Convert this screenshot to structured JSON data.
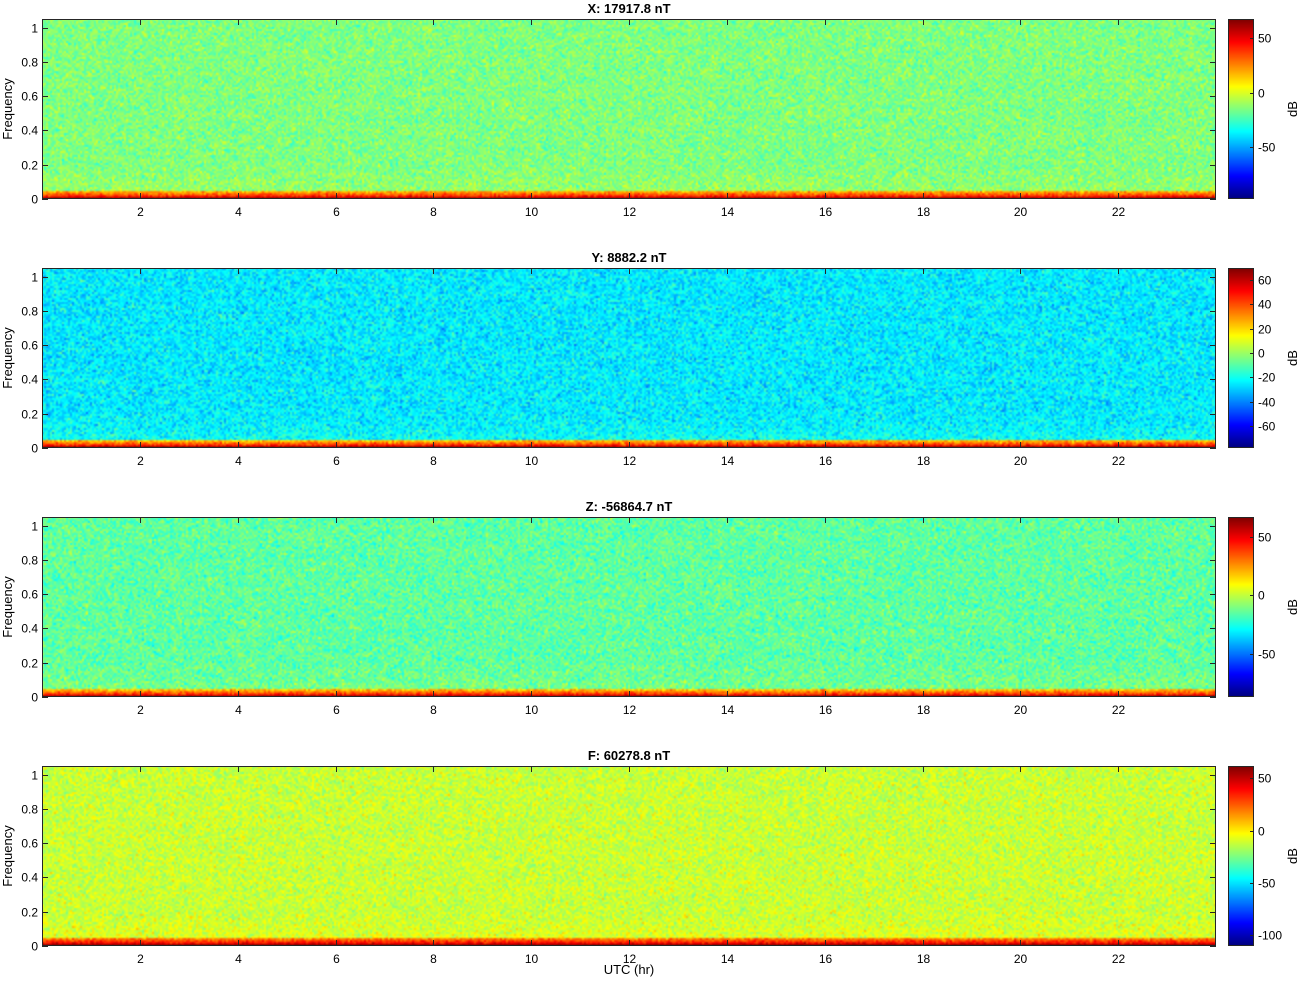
{
  "chart_data": [
    {
      "type": "heatmap",
      "title": "X: 17917.8 nT",
      "ylabel": "Frequency",
      "xlabel": "",
      "xlim": [
        0,
        24
      ],
      "ylim": [
        0,
        1.05
      ],
      "xticks": [
        2,
        4,
        6,
        8,
        10,
        12,
        14,
        16,
        18,
        20,
        22
      ],
      "yticks": [
        0,
        0.2,
        0.4,
        0.6,
        0.8,
        1
      ],
      "colorbar": {
        "label": "dB",
        "range": [
          -97,
          67
        ],
        "ticks": [
          -50,
          0,
          50
        ]
      },
      "background_db": -15,
      "lowfreq_band_db": 45,
      "colormap": "jet"
    },
    {
      "type": "heatmap",
      "title": "Y: 8882.2 nT",
      "ylabel": "Frequency",
      "xlabel": "",
      "xlim": [
        0,
        24
      ],
      "ylim": [
        0,
        1.05
      ],
      "xticks": [
        2,
        4,
        6,
        8,
        10,
        12,
        14,
        16,
        18,
        20,
        22
      ],
      "yticks": [
        0,
        0.2,
        0.4,
        0.6,
        0.8,
        1
      ],
      "colorbar": {
        "label": "dB",
        "range": [
          -78,
          70
        ],
        "ticks": [
          -60,
          -40,
          -20,
          0,
          20,
          40,
          60
        ]
      },
      "background_db": -25,
      "lowfreq_band_db": 50,
      "colormap": "jet"
    },
    {
      "type": "heatmap",
      "title": "Z: -56864.7 nT",
      "ylabel": "Frequency",
      "xlabel": "",
      "xlim": [
        0,
        24
      ],
      "ylim": [
        0,
        1.05
      ],
      "xticks": [
        2,
        4,
        6,
        8,
        10,
        12,
        14,
        16,
        18,
        20,
        22
      ],
      "yticks": [
        0,
        0.2,
        0.4,
        0.6,
        0.8,
        1
      ],
      "colorbar": {
        "label": "dB",
        "range": [
          -87,
          67
        ],
        "ticks": [
          -50,
          0,
          50
        ]
      },
      "background_db": -15,
      "lowfreq_band_db": 45,
      "colormap": "jet"
    },
    {
      "type": "heatmap",
      "title": "F: 60278.8 nT",
      "ylabel": "Frequency",
      "xlabel": "UTC (hr)",
      "xlim": [
        0,
        24
      ],
      "ylim": [
        0,
        1.05
      ],
      "xticks": [
        2,
        4,
        6,
        8,
        10,
        12,
        14,
        16,
        18,
        20,
        22
      ],
      "yticks": [
        0,
        0.2,
        0.4,
        0.6,
        0.8,
        1
      ],
      "colorbar": {
        "label": "dB",
        "range": [
          -111,
          62
        ],
        "ticks": [
          -100,
          -50,
          0,
          50
        ]
      },
      "background_db": -12,
      "lowfreq_band_db": 45,
      "colormap": "jet"
    }
  ]
}
